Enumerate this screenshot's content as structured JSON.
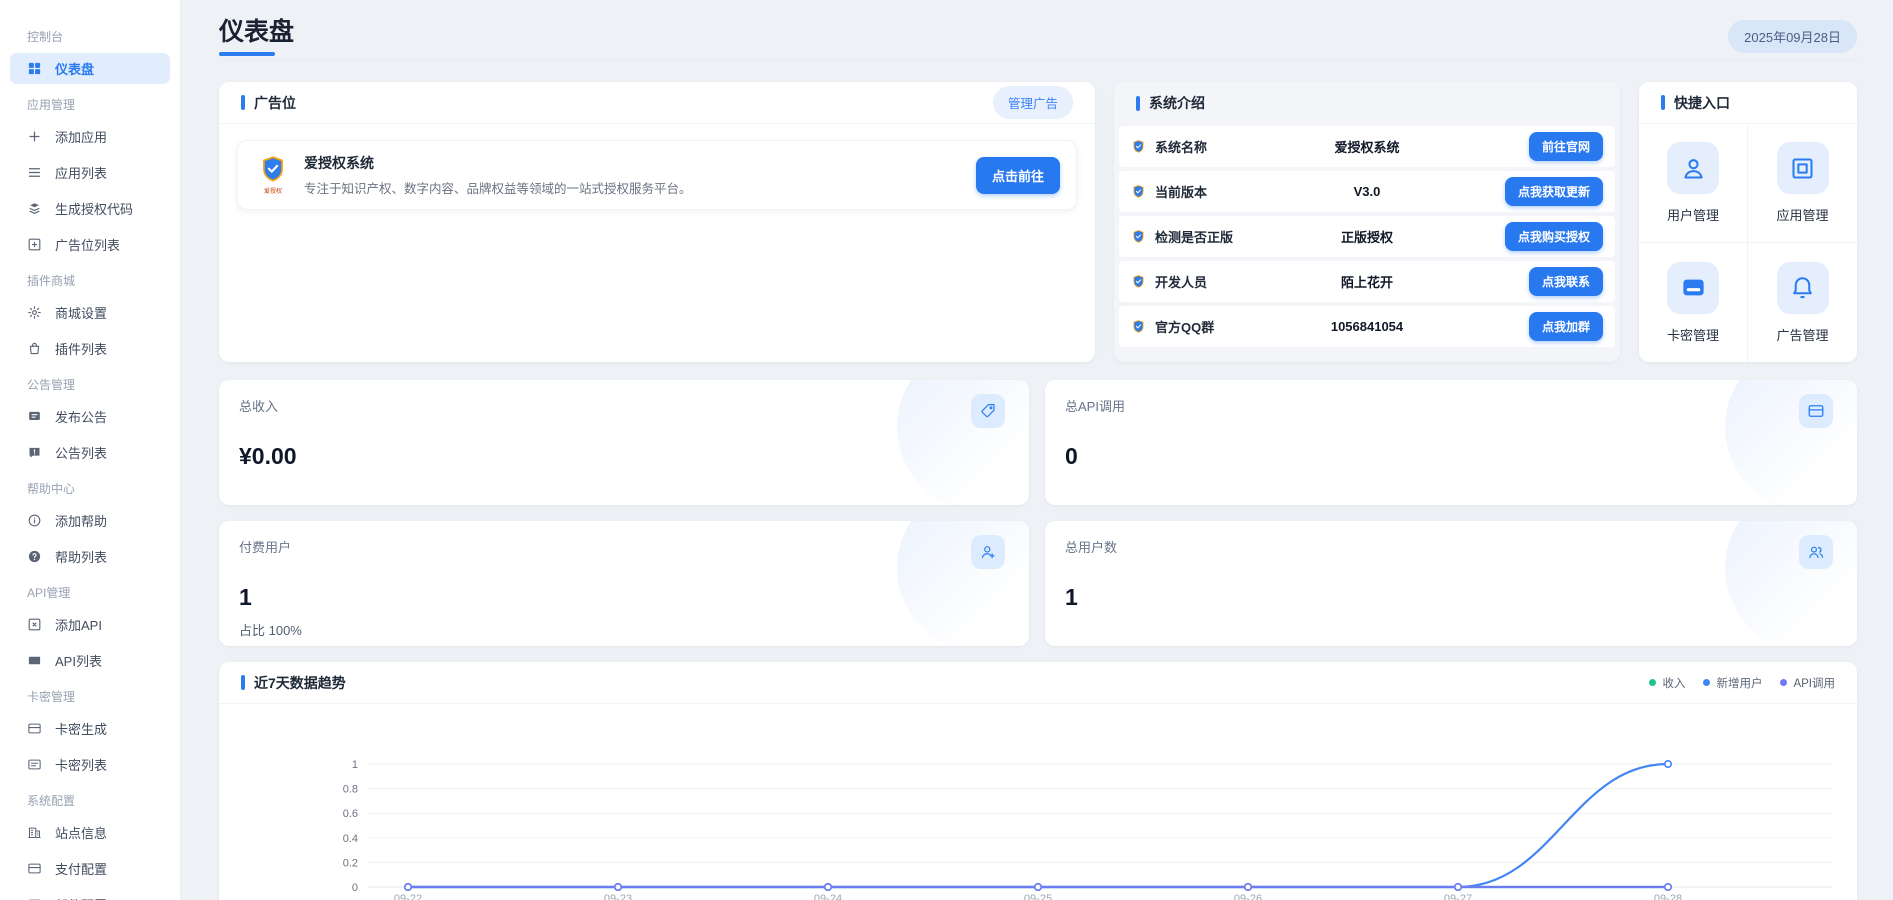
{
  "page": {
    "title": "仪表盘",
    "date_badge": "2025年09月28日"
  },
  "colors": {
    "accent": "#2b7cf0"
  },
  "sidebar": {
    "sections": [
      {
        "label": "控制台",
        "items": [
          {
            "label": "仪表盘",
            "icon": "dashboard-grid",
            "active": true
          }
        ]
      },
      {
        "label": "应用管理",
        "items": [
          {
            "label": "添加应用",
            "icon": "plus"
          },
          {
            "label": "应用列表",
            "icon": "list"
          },
          {
            "label": "生成授权代码",
            "icon": "stack"
          },
          {
            "label": "广告位列表",
            "icon": "plus-square"
          }
        ]
      },
      {
        "label": "插件商城",
        "items": [
          {
            "label": "商城设置",
            "icon": "gear"
          },
          {
            "label": "插件列表",
            "icon": "bag"
          }
        ]
      },
      {
        "label": "公告管理",
        "items": [
          {
            "label": "发布公告",
            "icon": "chat"
          },
          {
            "label": "公告列表",
            "icon": "chat-alert"
          }
        ]
      },
      {
        "label": "帮助中心",
        "items": [
          {
            "label": "添加帮助",
            "icon": "info-circle"
          },
          {
            "label": "帮助列表",
            "icon": "question-circle"
          }
        ]
      },
      {
        "label": "API管理",
        "items": [
          {
            "label": "添加API",
            "icon": "box-x"
          },
          {
            "label": "API列表",
            "icon": "rect-filled"
          }
        ]
      },
      {
        "label": "卡密管理",
        "items": [
          {
            "label": "卡密生成",
            "icon": "card"
          },
          {
            "label": "卡密列表",
            "icon": "card-lines"
          }
        ]
      },
      {
        "label": "系统配置",
        "items": [
          {
            "label": "站点信息",
            "icon": "building"
          },
          {
            "label": "支付配置",
            "icon": "card"
          },
          {
            "label": "邮件配置",
            "icon": "mail"
          }
        ]
      }
    ]
  },
  "ad_card": {
    "title": "广告位",
    "manage_button": "管理广告",
    "ad": {
      "name": "爱授权系统",
      "logo_text": "爱授权",
      "description": "专注于知识产权、数字内容、品牌权益等领域的一站式授权服务平台。",
      "go_button": "点击前往"
    }
  },
  "system_card": {
    "title": "系统介绍",
    "rows": [
      {
        "icon": "shield-logo",
        "label": "系统名称",
        "value": "爱授权系统",
        "button": "前往官网"
      },
      {
        "icon": "shield-logo",
        "label": "当前版本",
        "value": "V3.0",
        "button": "点我获取更新"
      },
      {
        "icon": "shield-logo",
        "label": "检测是否正版",
        "value": "正版授权",
        "button": "点我购买授权"
      },
      {
        "icon": "shield-logo",
        "label": "开发人员",
        "value": "陌上花开",
        "button": "点我联系"
      },
      {
        "icon": "shield-logo",
        "label": "官方QQ群",
        "value": "1056841054",
        "button": "点我加群"
      }
    ]
  },
  "quick_card": {
    "title": "快捷入口",
    "items": [
      {
        "label": "用户管理",
        "icon": "user"
      },
      {
        "label": "应用管理",
        "icon": "app-frame"
      },
      {
        "label": "卡密管理",
        "icon": "credit-card-solid"
      },
      {
        "label": "广告管理",
        "icon": "bell"
      }
    ]
  },
  "stats": [
    {
      "label": "总收入",
      "value": "¥0.00",
      "icon": "price-tag"
    },
    {
      "label": "总API调用",
      "value": "0",
      "icon": "card"
    },
    {
      "label": "付费用户",
      "value": "1",
      "sub": "占比 100%",
      "icon": "user-plus"
    },
    {
      "label": "总用户数",
      "value": "1",
      "icon": "users"
    }
  ],
  "chart_card": {
    "title": "近7天数据趋势"
  },
  "chart_data": {
    "type": "line",
    "title": "近7天数据趋势",
    "x": [
      "09-22",
      "09-23",
      "09-24",
      "09-25",
      "09-26",
      "09-27",
      "09-28"
    ],
    "series": [
      {
        "name": "收入",
        "color": "#1fc48c",
        "values": [
          0,
          0,
          0,
          0,
          0,
          0,
          0
        ]
      },
      {
        "name": "新增用户",
        "color": "#4285f4",
        "values": [
          0,
          0,
          0,
          0,
          0,
          0,
          1
        ]
      },
      {
        "name": "API调用",
        "color": "#6e79f4",
        "values": [
          0,
          0,
          0,
          0,
          0,
          0,
          0
        ]
      }
    ],
    "ylim": [
      0,
      1
    ],
    "yticks": [
      0,
      0.2,
      0.4,
      0.6,
      0.8,
      1
    ],
    "grid": true,
    "smooth": true,
    "legend_position": "top-right"
  }
}
